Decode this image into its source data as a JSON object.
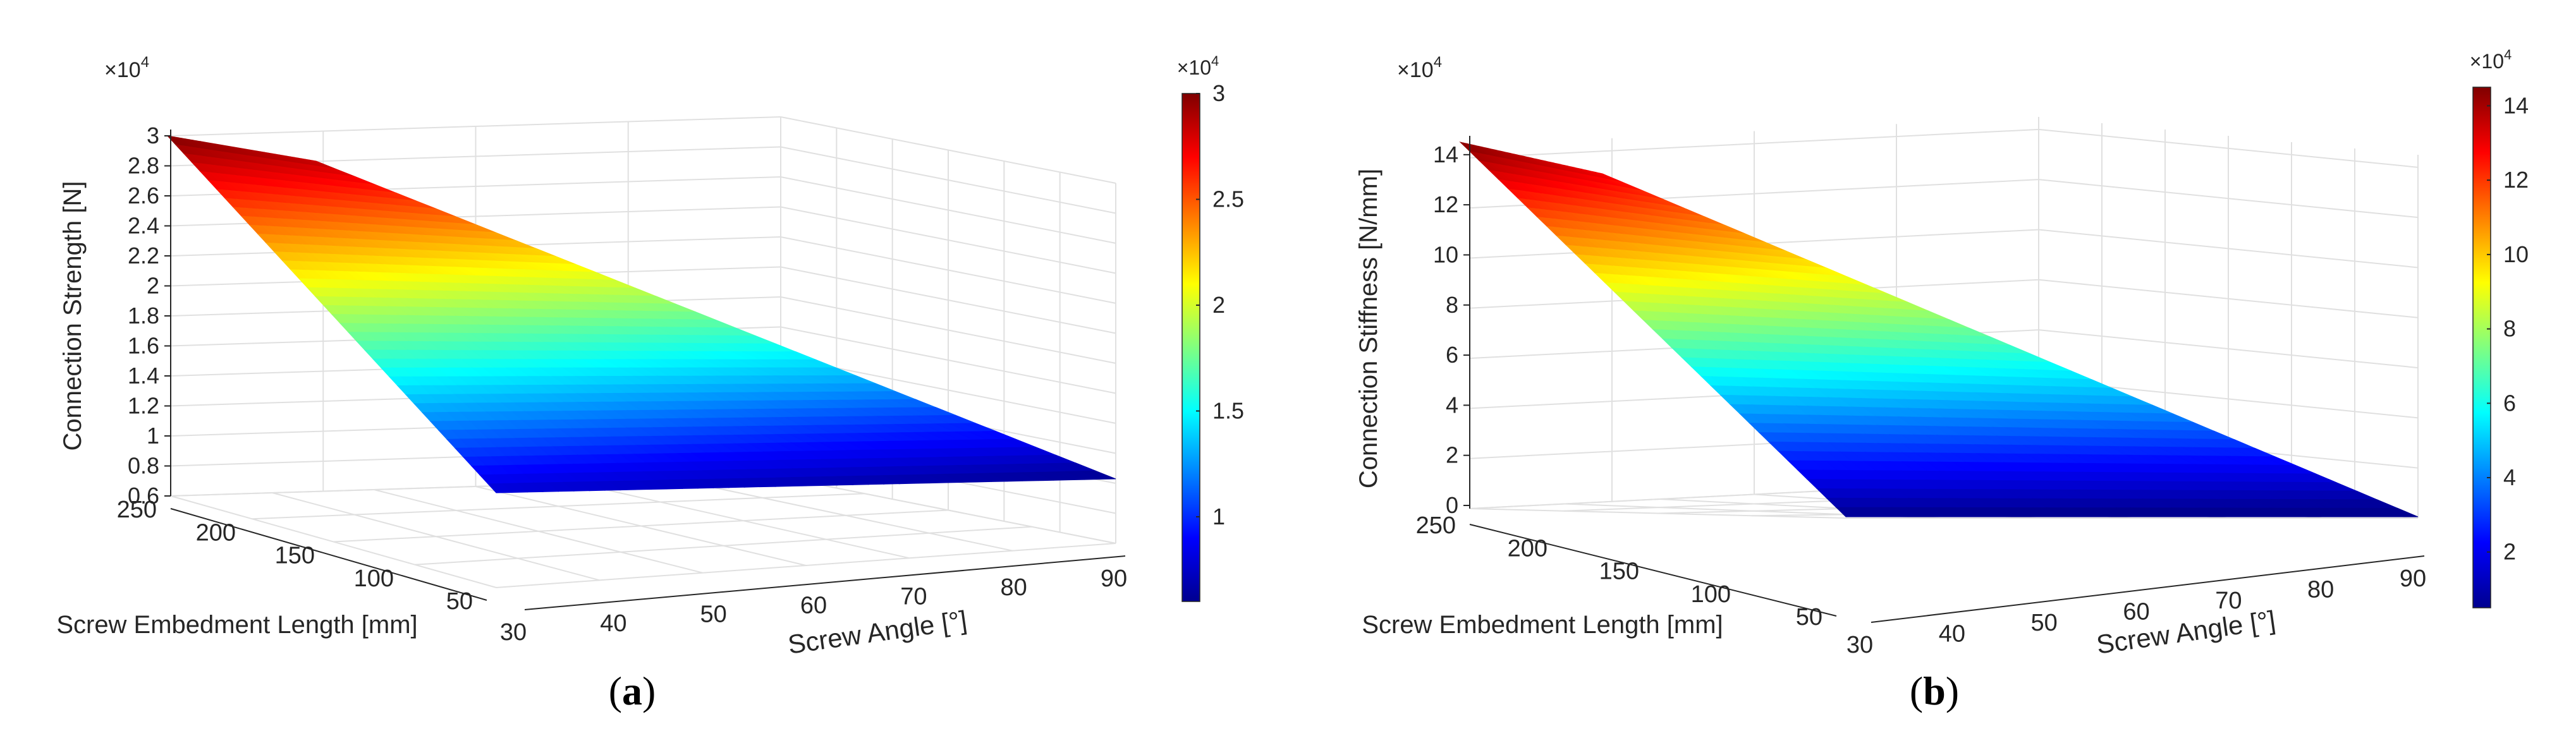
{
  "colors": {
    "jet": [
      "#00008f",
      "#0000ff",
      "#0080ff",
      "#00ffff",
      "#80ff80",
      "#ffff00",
      "#ff8000",
      "#ff0000",
      "#800000"
    ],
    "axis_text": "#262626",
    "grid": "#e0e0e0"
  },
  "chart_data": [
    {
      "type": "surface",
      "panel_label": "a",
      "zlabel": "Connection Strength [N]",
      "xlabel": "Screw Angle [°]",
      "ylabel": "Screw Embedment Length [mm]",
      "z_exponent": "×10",
      "z_exponent_power": "4",
      "x_ticks": [
        "30",
        "40",
        "50",
        "60",
        "70",
        "80",
        "90"
      ],
      "y_ticks": [
        "250",
        "200",
        "150",
        "100",
        "50"
      ],
      "z_ticks": [
        "0.6",
        "0.8",
        "1",
        "1.2",
        "1.4",
        "1.6",
        "1.8",
        "2",
        "2.2",
        "2.4",
        "2.6",
        "2.8",
        "3"
      ],
      "colorbar": {
        "exponent": "×10",
        "exponent_power": "4",
        "ticks": [
          "1",
          "1.5",
          "2",
          "2.5",
          "3"
        ],
        "range": [
          0.6,
          3.0
        ]
      },
      "corner_values": {
        "angle_30_len_250": 3.0,
        "angle_30_len_200": 2.85,
        "angle_30_len_50": 0.78,
        "angle_90_len_250": 0.78,
        "angle_90_len_50": 0.6
      }
    },
    {
      "type": "surface",
      "panel_label": "b",
      "zlabel": "Connection Stiffness [N/mm]",
      "xlabel": "Screw Angle [°]",
      "ylabel": "Screw Embedment Length [mm]",
      "z_exponent": "×10",
      "z_exponent_power": "4",
      "x_ticks": [
        "30",
        "40",
        "50",
        "60",
        "70",
        "80",
        "90"
      ],
      "y_ticks": [
        "250",
        "200",
        "150",
        "100",
        "50"
      ],
      "z_ticks": [
        "0",
        "2",
        "4",
        "6",
        "8",
        "10",
        "12",
        "14"
      ],
      "colorbar": {
        "exponent": "×10",
        "exponent_power": "4",
        "ticks": [
          "2",
          "4",
          "6",
          "8",
          "10",
          "12",
          "14"
        ],
        "range": [
          0.5,
          14.5
        ]
      },
      "corner_values": {
        "angle_30_len_250": 14.5,
        "angle_30_len_200": 13.0,
        "angle_30_len_50": 0.5,
        "angle_90_len_250": 0.8,
        "angle_90_len_50": 0.2
      }
    }
  ]
}
